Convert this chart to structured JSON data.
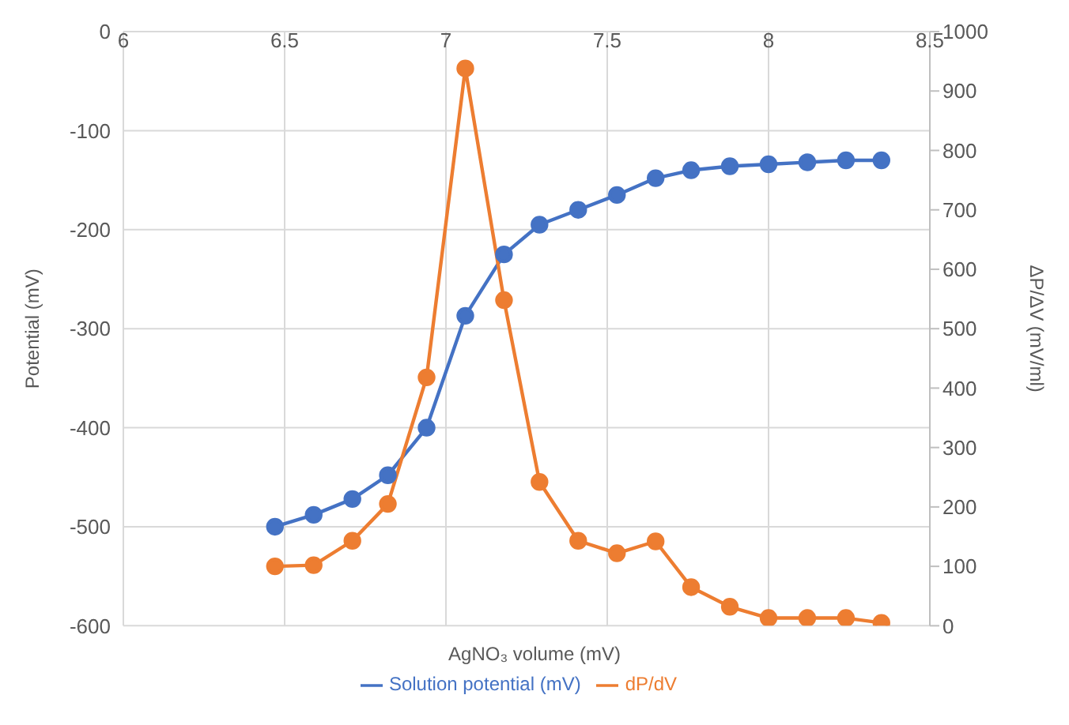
{
  "chart_data": {
    "type": "line",
    "xlabel": "AgNO₃ volume (mV)",
    "ylabel": "Potential (mV)",
    "y2label": "ΔP/ΔV (mV/ml)",
    "x": [
      6.47,
      6.59,
      6.71,
      6.82,
      6.94,
      7.06,
      7.18,
      7.29,
      7.41,
      7.53,
      7.65,
      7.76,
      7.88,
      8.0,
      8.12,
      8.24,
      8.35
    ],
    "series": [
      {
        "name": "Solution potential (mV)",
        "color": "#4472c4",
        "values": [
          -500,
          -488,
          -472,
          -448,
          -400,
          -287,
          -225,
          -195,
          -180,
          -165,
          -148,
          -140,
          -136,
          -134,
          -132,
          -130,
          -130
        ]
      },
      {
        "name": "dP/dV",
        "color": "#ed7d31",
        "axis": "y2",
        "values": [
          100,
          102,
          143,
          205,
          418,
          938,
          548,
          242,
          143,
          122,
          142,
          65,
          32,
          13,
          13,
          13,
          5
        ]
      }
    ],
    "xlim": [
      6,
      8.5
    ],
    "xticks": [
      6,
      6.5,
      7,
      7.5,
      8,
      8.5
    ],
    "ylim": [
      -600,
      0
    ],
    "yticks": [
      -600,
      -500,
      -400,
      -300,
      -200,
      -100,
      0
    ],
    "y2lim": [
      0,
      1000
    ],
    "y2ticks": [
      0,
      100,
      200,
      300,
      400,
      500,
      600,
      700,
      800,
      900,
      1000
    ],
    "grid": true,
    "legend": "bottom",
    "marker": "circle",
    "line_style": "solid"
  }
}
